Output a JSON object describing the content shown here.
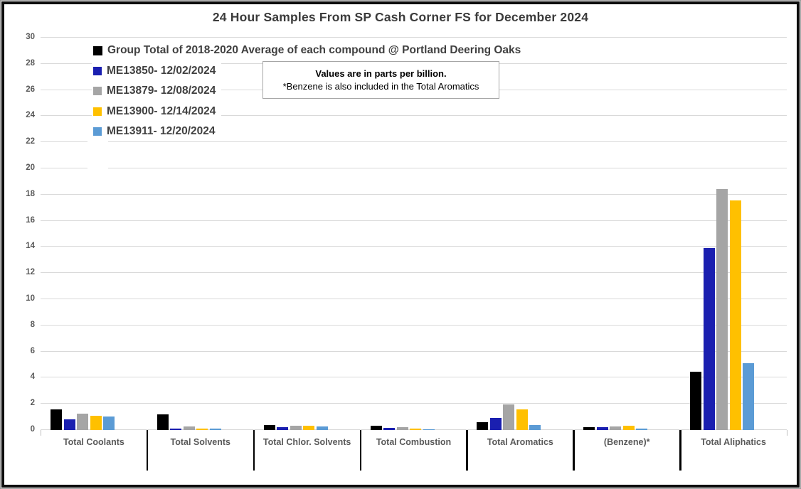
{
  "title": "24 Hour Samples From SP Cash Corner FS for December 2024",
  "note_box": {
    "line1": "Values are in parts per billion.",
    "line2": "*Benzene is also included in the Total Aromatics"
  },
  "legend": {
    "position": "top-left-inside",
    "items": [
      {
        "label": "Group Total of 2018-2020 Average of each compound @ Portland Deering Oaks",
        "color": "#000000"
      },
      {
        "label": "ME13850- 12/02/2024",
        "color": "#1A1FB0"
      },
      {
        "label": "ME13879- 12/08/2024",
        "color": "#A5A5A5"
      },
      {
        "label": "ME13900- 12/14/2024",
        "color": "#FFC000"
      },
      {
        "label": "ME13911- 12/20/2024",
        "color": "#5B9BD5"
      }
    ]
  },
  "chart_data": {
    "type": "bar",
    "title": "24 Hour Samples From SP Cash Corner FS for December 2024",
    "unit": "parts per billion",
    "categories": [
      "Total Coolants",
      "Total Solvents",
      "Total Chlor. Solvents",
      "Total Combustion",
      "Total Aromatics",
      "(Benzene)*",
      "Total Aliphatics"
    ],
    "series": [
      {
        "name": "Group Total of 2018-2020 Average of each compound @ Portland Deering Oaks",
        "color": "#000000",
        "values": [
          1.55,
          1.2,
          0.4,
          0.3,
          0.6,
          0.2,
          4.45
        ]
      },
      {
        "name": "ME13850- 12/02/2024",
        "color": "#1A1FB0",
        "values": [
          0.8,
          0.1,
          0.2,
          0.15,
          0.95,
          0.2,
          13.9
        ]
      },
      {
        "name": "ME13879- 12/08/2024",
        "color": "#A5A5A5",
        "values": [
          1.25,
          0.25,
          0.3,
          0.2,
          1.95,
          0.25,
          18.4
        ]
      },
      {
        "name": "ME13900- 12/14/2024",
        "color": "#FFC000",
        "values": [
          1.1,
          0.1,
          0.3,
          0.1,
          1.6,
          0.3,
          17.55
        ]
      },
      {
        "name": "ME13911- 12/20/2024",
        "color": "#5B9BD5",
        "values": [
          1.05,
          0.1,
          0.25,
          0.03,
          0.4,
          0.1,
          5.1
        ]
      }
    ],
    "xlabel": "",
    "ylabel": "",
    "ylim": [
      0,
      30
    ],
    "ytick_step": 2,
    "grid": true,
    "gridline_color": "#D9D9D9",
    "legend_position": "upper left inside plot"
  }
}
